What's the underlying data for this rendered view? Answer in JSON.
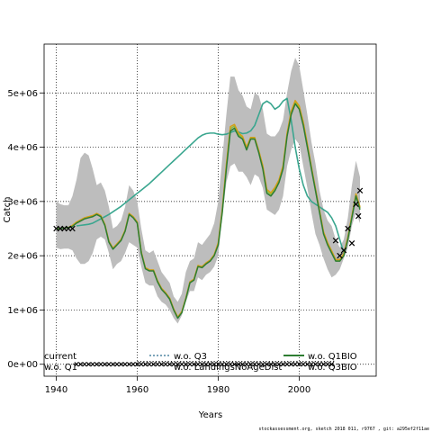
{
  "chart_data": {
    "type": "line",
    "xlabel": "Years",
    "ylabel": "Catch",
    "xlim": [
      1937,
      2019
    ],
    "ylim": [
      -220000,
      5900000
    ],
    "x_ticks": [
      1940,
      1960,
      1980,
      2000
    ],
    "y_ticks": [
      {
        "value": 0,
        "label": "0e+00"
      },
      {
        "value": 1000000,
        "label": "1e+06"
      },
      {
        "value": 2000000,
        "label": "2e+06"
      },
      {
        "value": 3000000,
        "label": "3e+06"
      },
      {
        "value": 4000000,
        "label": "4e+06"
      },
      {
        "value": 5000000,
        "label": "5e+06"
      }
    ],
    "grid": true,
    "years": [
      1940,
      1941,
      1942,
      1943,
      1944,
      1945,
      1946,
      1947,
      1948,
      1949,
      1950,
      1951,
      1952,
      1953,
      1954,
      1955,
      1956,
      1957,
      1958,
      1959,
      1960,
      1961,
      1962,
      1963,
      1964,
      1965,
      1966,
      1967,
      1968,
      1969,
      1970,
      1971,
      1972,
      1973,
      1974,
      1975,
      1976,
      1977,
      1978,
      1979,
      1980,
      1981,
      1982,
      1983,
      1984,
      1985,
      1986,
      1987,
      1988,
      1989,
      1990,
      1991,
      1992,
      1993,
      1994,
      1995,
      1996,
      1997,
      1998,
      1999,
      2000,
      2001,
      2002,
      2003,
      2004,
      2005,
      2006,
      2007,
      2008,
      2009,
      2010,
      2011,
      2012,
      2013,
      2014,
      2015
    ],
    "band_upper": [
      3000000,
      2950000,
      2930000,
      2930000,
      3100000,
      3400000,
      3800000,
      3900000,
      3850000,
      3600000,
      3300000,
      3350000,
      3200000,
      2900000,
      2500000,
      2550000,
      2650000,
      2900000,
      3300000,
      3200000,
      3000000,
      2500000,
      2100000,
      2050000,
      2100000,
      1900000,
      1700000,
      1600000,
      1500000,
      1250000,
      1150000,
      1300000,
      1700000,
      1900000,
      1950000,
      2250000,
      2200000,
      2300000,
      2400000,
      2600000,
      3000000,
      3800000,
      4600000,
      5300000,
      5300000,
      5050000,
      4950000,
      4750000,
      4700000,
      5000000,
      4950000,
      4700000,
      4250000,
      4200000,
      4200000,
      4300000,
      4500000,
      5000000,
      5400000,
      5650000,
      5500000,
      5050000,
      4600000,
      4100000,
      3700000,
      3200000,
      2850000,
      2650000,
      2550000,
      2300000,
      2150000,
      2300000,
      2700000,
      3300000,
      3750000,
      3450000
    ],
    "band_lower": [
      2150000,
      2120000,
      2130000,
      2130000,
      2100000,
      1950000,
      1850000,
      1850000,
      1900000,
      2050000,
      2300000,
      2350000,
      2300000,
      2050000,
      1750000,
      1850000,
      1900000,
      2050000,
      2250000,
      2200000,
      2150000,
      1800000,
      1500000,
      1450000,
      1450000,
      1250000,
      1150000,
      1100000,
      1000000,
      850000,
      750000,
      900000,
      1150000,
      1350000,
      1350000,
      1600000,
      1550000,
      1650000,
      1700000,
      1800000,
      2000000,
      2750000,
      3350000,
      3650000,
      3700000,
      3550000,
      3550000,
      3450000,
      3300000,
      3500000,
      3450000,
      3250000,
      2850000,
      2800000,
      2750000,
      2850000,
      3100000,
      3650000,
      3950000,
      4150000,
      4050000,
      3650000,
      3250000,
      2800000,
      2400000,
      2200000,
      1950000,
      1750000,
      1600000,
      1650000,
      1750000,
      1950000,
      2150000,
      2550000,
      2800000,
      2600000
    ],
    "series": [
      {
        "name": "w.o. Q1BIO",
        "color": "#2e7d32",
        "values": [
          2500000,
          2500000,
          2510000,
          2520000,
          2540000,
          2600000,
          2640000,
          2680000,
          2700000,
          2720000,
          2760000,
          2720000,
          2560000,
          2250000,
          2120000,
          2200000,
          2280000,
          2450000,
          2760000,
          2700000,
          2600000,
          2050000,
          1760000,
          1720000,
          1720000,
          1520000,
          1380000,
          1300000,
          1200000,
          1000000,
          850000,
          950000,
          1200000,
          1500000,
          1550000,
          1800000,
          1780000,
          1850000,
          1900000,
          2000000,
          2200000,
          2800000,
          3600000,
          4300000,
          4350000,
          4200000,
          4150000,
          3950000,
          4150000,
          4150000,
          3900000,
          3600000,
          3150000,
          3100000,
          3200000,
          3350000,
          3600000,
          4200000,
          4600000,
          4800000,
          4700000,
          4400000,
          4000000,
          3600000,
          3200000,
          2800000,
          2400000,
          2200000,
          2050000,
          1900000,
          1900000,
          2000000,
          2300000,
          2700000,
          3100000,
          2850000
        ]
      },
      {
        "name": "w.o. Q3",
        "color": "#d4a017",
        "values": [
          2500000,
          2500000,
          2510000,
          2520000,
          2560000,
          2620000,
          2660000,
          2700000,
          2720000,
          2740000,
          2780000,
          2740000,
          2580000,
          2270000,
          2140000,
          2220000,
          2300000,
          2470000,
          2780000,
          2720000,
          2620000,
          2070000,
          1780000,
          1740000,
          1740000,
          1540000,
          1400000,
          1320000,
          1220000,
          1020000,
          870000,
          970000,
          1220000,
          1520000,
          1570000,
          1820000,
          1800000,
          1870000,
          1920000,
          2020000,
          2240000,
          2860000,
          3680000,
          4380000,
          4420000,
          4260000,
          4200000,
          4000000,
          4180000,
          4180000,
          3940000,
          3660000,
          3220000,
          3160000,
          3260000,
          3400000,
          3660000,
          4260000,
          4660000,
          4860000,
          4760000,
          4460000,
          4060000,
          3640000,
          3240000,
          2840000,
          2440000,
          2240000,
          2090000,
          1930000,
          1930000,
          2040000,
          2340000,
          2740000,
          3140000,
          2900000
        ]
      },
      {
        "name": "w.o. Q3BIO",
        "color": "#8fbc3f",
        "values": [
          2500000,
          2500000,
          2510000,
          2520000,
          2550000,
          2610000,
          2650000,
          2690000,
          2710000,
          2730000,
          2770000,
          2730000,
          2570000,
          2260000,
          2130000,
          2210000,
          2290000,
          2460000,
          2770000,
          2710000,
          2610000,
          2060000,
          1770000,
          1730000,
          1730000,
          1530000,
          1390000,
          1310000,
          1210000,
          1010000,
          860000,
          960000,
          1210000,
          1510000,
          1560000,
          1810000,
          1790000,
          1860000,
          1910000,
          2010000,
          2220000,
          2830000,
          3640000,
          4340000,
          4390000,
          4230000,
          4180000,
          3980000,
          4170000,
          4170000,
          3920000,
          3630000,
          3190000,
          3130000,
          3230000,
          3380000,
          3630000,
          4230000,
          4630000,
          4830000,
          4730000,
          4430000,
          4030000,
          3620000,
          3220000,
          2820000,
          2420000,
          2220000,
          2070000,
          1920000,
          1920000,
          2020000,
          2320000,
          2720000,
          3120000,
          2880000
        ]
      },
      {
        "name": "w.o. LandingsNoAgeDist",
        "color": "#3aa68f",
        "values": [
          null,
          null,
          null,
          null,
          null,
          2550000,
          2560000,
          2570000,
          2580000,
          2600000,
          2640000,
          2680000,
          2720000,
          2760000,
          2810000,
          2860000,
          2910000,
          2970000,
          3030000,
          3090000,
          3150000,
          3210000,
          3270000,
          3330000,
          3400000,
          3470000,
          3540000,
          3610000,
          3680000,
          3750000,
          3820000,
          3890000,
          3960000,
          4030000,
          4100000,
          4170000,
          4220000,
          4250000,
          4260000,
          4260000,
          4240000,
          4230000,
          4240000,
          4270000,
          4300000,
          4280000,
          4250000,
          4260000,
          4300000,
          4400000,
          4600000,
          4800000,
          4850000,
          4800000,
          4700000,
          4750000,
          4850000,
          4900000,
          4500000,
          4000000,
          3600000,
          3300000,
          3100000,
          3000000,
          2950000,
          2900000,
          2850000,
          2800000,
          2700000,
          2550000,
          2300000,
          2050000,
          null,
          null,
          null,
          null
        ]
      }
    ],
    "current_x": [
      1940,
      1941,
      1942,
      1943,
      1944,
      2009,
      2010,
      2011,
      2012,
      2013,
      2014,
      2014.6,
      2015
    ],
    "current_y": [
      2500000,
      2500000,
      2500000,
      2500000,
      2500000,
      2280000,
      2000000,
      2100000,
      2500000,
      2230000,
      2950000,
      2730000,
      3200000
    ],
    "q1_y": 0,
    "q1_x_range": [
      1945,
      2008
    ],
    "landings_dot_x_range": [
      1960,
      2009
    ],
    "legend": {
      "current": "current",
      "q1": "w.o. Q1",
      "q3": "w.o. Q3",
      "landings": "w.o. LandingsNoAgeDist",
      "q1bio": "w.o. Q1BIO",
      "q3bio": "w.o. Q3BIO"
    },
    "band_color": "#bdbdbd",
    "current_color": "#000000"
  },
  "footer": "stockassessment.org, sketch 2018 011, r9767 , git: a295ef2f11ae"
}
